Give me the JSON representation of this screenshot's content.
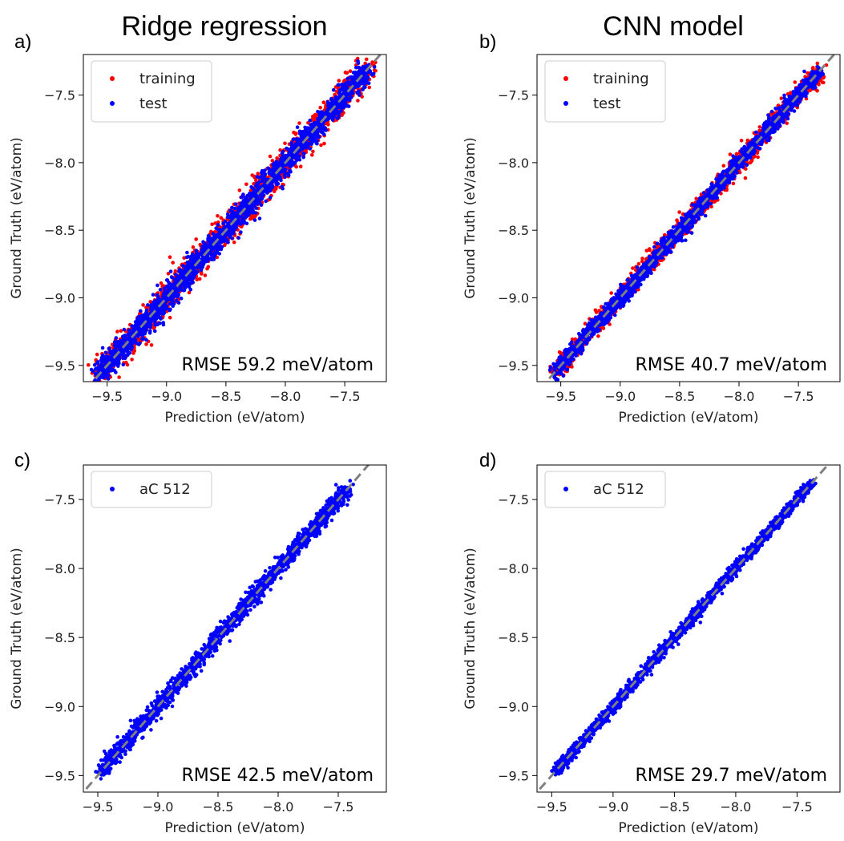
{
  "figure": {
    "column_titles": [
      "Ridge regression",
      "CNN model"
    ]
  },
  "chart_data": [
    {
      "type": "scatter",
      "panel": "a)",
      "column": "Ridge regression",
      "xlabel": "Prediction (eV/atom)",
      "ylabel": "Ground Truth (eV/atom)",
      "xlim": [
        -9.7,
        -7.15
      ],
      "ylim": [
        -9.62,
        -7.2
      ],
      "xticks": [
        -9.5,
        -9.0,
        -8.5,
        -8.0,
        -7.5
      ],
      "xtick_labels": [
        "−9.5",
        "−9.0",
        "−8.5",
        "−8.0",
        "−7.5"
      ],
      "yticks": [
        -9.5,
        -9.0,
        -8.5,
        -8.0,
        -7.5
      ],
      "ytick_labels": [
        "−9.5",
        "−9.0",
        "−8.5",
        "−8.0",
        "−7.5"
      ],
      "legend_position": "top-left",
      "annotation": "RMSE 59.2 meV/atom",
      "reference_line": "y = x (gray dashed)",
      "series": [
        {
          "name": "training",
          "color": "#ff0000",
          "range": [
            -9.58,
            -7.3
          ],
          "spread": 0.075,
          "count": 1600
        },
        {
          "name": "test",
          "color": "#0000ff",
          "range": [
            -9.58,
            -7.3
          ],
          "spread": 0.06,
          "count": 2200
        }
      ]
    },
    {
      "type": "scatter",
      "panel": "b)",
      "column": "CNN model",
      "xlabel": "Prediction (eV/atom)",
      "ylabel": "Ground Truth (eV/atom)",
      "xlim": [
        -9.7,
        -7.15
      ],
      "ylim": [
        -9.62,
        -7.2
      ],
      "xticks": [
        -9.5,
        -9.0,
        -8.5,
        -8.0,
        -7.5
      ],
      "xtick_labels": [
        "−9.5",
        "−9.0",
        "−8.5",
        "−8.0",
        "−7.5"
      ],
      "yticks": [
        -9.5,
        -9.0,
        -8.5,
        -8.0,
        -7.5
      ],
      "ytick_labels": [
        "−9.5",
        "−9.0",
        "−8.5",
        "−8.0",
        "−7.5"
      ],
      "legend_position": "top-left",
      "annotation": "RMSE 40.7 meV/atom",
      "reference_line": "y = x (gray dashed)",
      "series": [
        {
          "name": "training",
          "color": "#ff0000",
          "range": [
            -9.55,
            -7.32
          ],
          "spread": 0.05,
          "count": 1500
        },
        {
          "name": "test",
          "color": "#0000ff",
          "range": [
            -9.55,
            -7.32
          ],
          "spread": 0.042,
          "count": 2000
        }
      ]
    },
    {
      "type": "scatter",
      "panel": "c)",
      "column": "Ridge regression",
      "xlabel": "Prediction (eV/atom)",
      "ylabel": "Ground Truth (eV/atom)",
      "xlim": [
        -9.62,
        -7.1
      ],
      "ylim": [
        -9.62,
        -7.25
      ],
      "xticks": [
        -9.5,
        -9.0,
        -8.5,
        -8.0,
        -7.5
      ],
      "xtick_labels": [
        "−9.5",
        "−9.0",
        "−8.5",
        "−8.0",
        "−7.5"
      ],
      "yticks": [
        -9.5,
        -9.0,
        -8.5,
        -8.0,
        -7.5
      ],
      "ytick_labels": [
        "−9.5",
        "−9.0",
        "−8.5",
        "−8.0",
        "−7.5"
      ],
      "legend_position": "top-left",
      "annotation": "RMSE 42.5 meV/atom",
      "reference_line": "y = x (gray dashed)",
      "series": [
        {
          "name": "aC 512",
          "color": "#0000ff",
          "range": [
            -9.48,
            -7.42
          ],
          "spread": 0.045,
          "count": 1700
        }
      ]
    },
    {
      "type": "scatter",
      "panel": "d)",
      "column": "CNN model",
      "xlabel": "Prediction (eV/atom)",
      "ylabel": "Ground Truth (eV/atom)",
      "xlim": [
        -9.62,
        -7.15
      ],
      "ylim": [
        -9.62,
        -7.25
      ],
      "xticks": [
        -9.5,
        -9.0,
        -8.5,
        -8.0,
        -7.5
      ],
      "xtick_labels": [
        "−9.5",
        "−9.0",
        "−8.5",
        "−8.0",
        "−7.5"
      ],
      "yticks": [
        -9.5,
        -9.0,
        -8.5,
        -8.0,
        -7.5
      ],
      "ytick_labels": [
        "−9.5",
        "−9.0",
        "−8.5",
        "−8.0",
        "−7.5"
      ],
      "legend_position": "top-left",
      "annotation": "RMSE 29.7 meV/atom",
      "reference_line": "y = x (gray dashed)",
      "series": [
        {
          "name": "aC 512",
          "color": "#0000ff",
          "range": [
            -9.48,
            -7.38
          ],
          "spread": 0.03,
          "count": 1700
        }
      ]
    }
  ]
}
